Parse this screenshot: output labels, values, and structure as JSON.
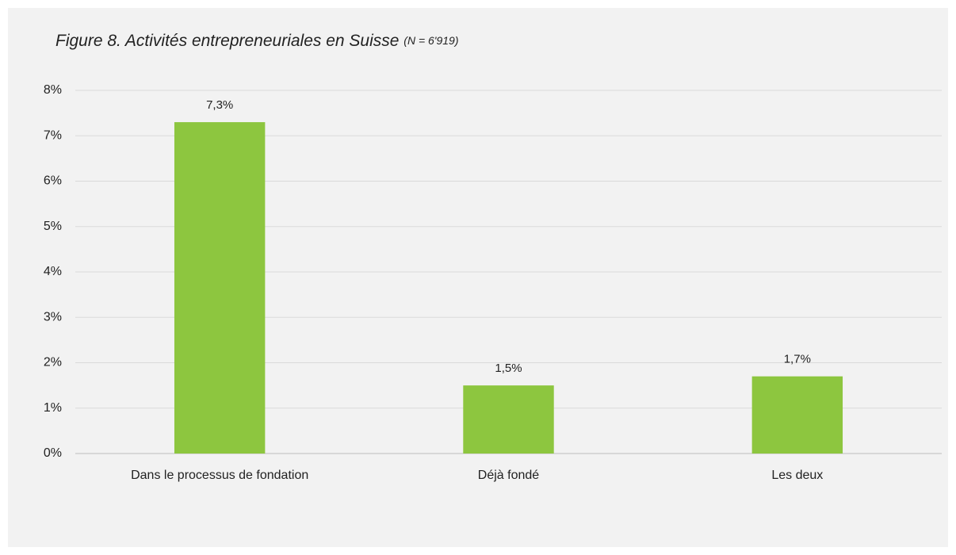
{
  "chart_data": {
    "type": "bar",
    "title": "Figure 8. Activités entrepreneuriales en Suisse",
    "subtitle": "(N = 6'919)",
    "categories": [
      "Dans le processus de fondation",
      "Déjà fondé",
      "Les deux"
    ],
    "values": [
      7.3,
      1.5,
      1.7
    ],
    "value_labels": [
      "7,3%",
      "1,5%",
      "1,7%"
    ],
    "color": "#8dc63f",
    "ylim": [
      0,
      8
    ],
    "yticks": [
      {
        "value": 0,
        "label": "0%"
      },
      {
        "value": 1,
        "label": "1%"
      },
      {
        "value": 2,
        "label": "2%"
      },
      {
        "value": 3,
        "label": "3%"
      },
      {
        "value": 4,
        "label": "4%"
      },
      {
        "value": 5,
        "label": "5%"
      },
      {
        "value": 6,
        "label": "6%"
      },
      {
        "value": 7,
        "label": "7%"
      },
      {
        "value": 8,
        "label": "8%"
      }
    ],
    "grid": true
  }
}
